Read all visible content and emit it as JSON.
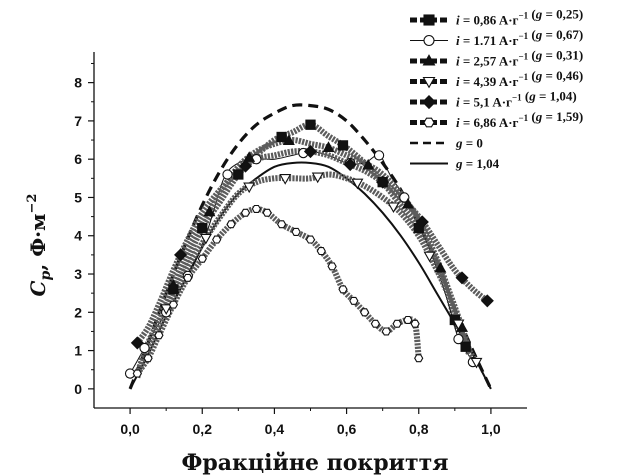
{
  "chart_data": {
    "type": "line",
    "xlabel": "Фракційне покриття",
    "ylabel": {
      "main": "C",
      "sub": "p",
      "rest": ",  Ф·м",
      "sup": "−2"
    },
    "xlim": [
      -0.1,
      1.1
    ],
    "ylim": [
      -0.5,
      8.8
    ],
    "x_ticks": [
      0.0,
      0.2,
      0.4,
      0.6,
      0.8,
      1.0
    ],
    "x_tick_labels": [
      "0,0",
      "0,2",
      "0,4",
      "0,6",
      "0,8",
      "1,0"
    ],
    "y_ticks": [
      0,
      1,
      2,
      3,
      4,
      5,
      6,
      7,
      8
    ],
    "y_tick_labels": [
      "0",
      "1",
      "2",
      "3",
      "4",
      "5",
      "6",
      "7",
      "8"
    ],
    "grid": false,
    "legend_position": "top-right",
    "series": [
      {
        "name": "i = 0,86 A·г−1 (g = 0,25)",
        "legend": {
          "pre": "i = 0,86 A·г",
          "sup": "−1",
          "post": " (g = 0,25)"
        },
        "line_style": "dashed-thick",
        "marker": "square-filled",
        "color": "#111111",
        "x": [
          0.02,
          0.05,
          0.08,
          0.12,
          0.16,
          0.2,
          0.25,
          0.3,
          0.35,
          0.4,
          0.45,
          0.5,
          0.55,
          0.6,
          0.65,
          0.7,
          0.75,
          0.8,
          0.85,
          0.88,
          0.9,
          0.92,
          0.94
        ],
        "y": [
          0.3,
          1.1,
          1.7,
          2.6,
          3.4,
          4.2,
          4.9,
          5.6,
          6.1,
          6.5,
          6.7,
          6.9,
          6.6,
          6.3,
          5.9,
          5.4,
          4.8,
          4.2,
          3.3,
          2.5,
          1.8,
          1.3,
          0.9
        ],
        "marked_x": [
          0.12,
          0.2,
          0.3,
          0.42,
          0.5,
          0.59,
          0.7,
          0.8,
          0.9,
          0.93
        ]
      },
      {
        "name": "i = 1.71 A·г−1 (g = 0,67)",
        "legend": {
          "pre": "i = 1.71 A·г",
          "sup": "−1",
          "post": " (g = 0,67)"
        },
        "line_style": "solid-thin",
        "marker": "circle-open",
        "color": "#111111",
        "x": [
          0.0,
          0.03,
          0.06,
          0.1,
          0.14,
          0.18,
          0.22,
          0.26,
          0.3,
          0.35,
          0.4,
          0.45,
          0.5,
          0.55,
          0.6,
          0.65,
          0.69,
          0.72,
          0.76,
          0.8,
          0.84,
          0.88,
          0.91,
          0.93,
          0.95
        ],
        "y": [
          0.4,
          0.9,
          1.4,
          2.0,
          2.6,
          3.3,
          4.3,
          5.5,
          5.9,
          6.0,
          6.0,
          6.1,
          6.2,
          6.1,
          5.9,
          5.9,
          6.1,
          5.6,
          5.0,
          4.3,
          3.4,
          2.3,
          1.3,
          1.0,
          0.7
        ],
        "marked_x": [
          0.0,
          0.04,
          0.1,
          0.16,
          0.27,
          0.35,
          0.48,
          0.61,
          0.69,
          0.76,
          0.91,
          0.95
        ]
      },
      {
        "name": "i = 2,57 A·г−1 (g = 0,31)",
        "legend": {
          "pre": "i = 2,57 A·г",
          "sup": "−1",
          "post": " (g = 0,31)"
        },
        "line_style": "dashed-thick",
        "marker": "triangle-up-filled",
        "color": "#111111",
        "x": [
          0.02,
          0.05,
          0.08,
          0.12,
          0.16,
          0.2,
          0.25,
          0.3,
          0.35,
          0.4,
          0.45,
          0.5,
          0.55,
          0.6,
          0.65,
          0.7,
          0.75,
          0.8,
          0.85,
          0.89,
          0.92,
          0.94
        ],
        "y": [
          0.4,
          1.2,
          1.8,
          2.7,
          3.6,
          4.3,
          5.1,
          5.8,
          6.2,
          6.4,
          6.5,
          6.4,
          6.3,
          6.1,
          5.9,
          5.6,
          5.1,
          4.4,
          3.4,
          2.4,
          1.6,
          1.0
        ],
        "marked_x": [
          0.12,
          0.22,
          0.33,
          0.44,
          0.55,
          0.66,
          0.77,
          0.86,
          0.92
        ]
      },
      {
        "name": "i = 4,39 A·г−1 (g = 0,46)",
        "legend": {
          "pre": "i = 4,39 A·г",
          "sup": "−1",
          "post": " (g = 0,46)"
        },
        "line_style": "dashed-thick",
        "marker": "triangle-down-open",
        "color": "#111111",
        "x": [
          0.02,
          0.05,
          0.08,
          0.12,
          0.16,
          0.2,
          0.25,
          0.3,
          0.35,
          0.4,
          0.45,
          0.5,
          0.55,
          0.6,
          0.65,
          0.7,
          0.75,
          0.8,
          0.84,
          0.88,
          0.91,
          0.94,
          0.96
        ],
        "y": [
          0.4,
          1.1,
          1.7,
          2.5,
          3.2,
          3.8,
          4.5,
          5.1,
          5.4,
          5.5,
          5.5,
          5.5,
          5.6,
          5.5,
          5.3,
          5.0,
          4.6,
          4.0,
          3.3,
          2.5,
          1.7,
          1.0,
          0.7
        ],
        "marked_x": [
          0.1,
          0.21,
          0.33,
          0.43,
          0.52,
          0.63,
          0.73,
          0.83,
          0.91,
          0.96
        ]
      },
      {
        "name": "i = 5,1 A·г−1 (g = 1,04)",
        "legend": {
          "pre": "i = 5,1 A·г",
          "sup": "−1",
          "post": " (g = 1,04)"
        },
        "line_style": "dashed-thick",
        "marker": "diamond-filled",
        "color": "#111111",
        "x": [
          0.02,
          0.05,
          0.08,
          0.12,
          0.16,
          0.2,
          0.25,
          0.3,
          0.35,
          0.4,
          0.45,
          0.5,
          0.55,
          0.6,
          0.65,
          0.7,
          0.75,
          0.8,
          0.85,
          0.9,
          0.95,
          0.99
        ],
        "y": [
          1.2,
          1.6,
          2.2,
          3.1,
          3.9,
          4.6,
          5.2,
          5.7,
          6.0,
          6.1,
          6.2,
          6.2,
          6.1,
          5.9,
          5.7,
          5.4,
          5.0,
          4.5,
          3.8,
          3.1,
          2.6,
          2.3
        ],
        "marked_x": [
          0.02,
          0.14,
          0.32,
          0.5,
          0.61,
          0.7,
          0.81,
          0.92,
          0.99
        ]
      },
      {
        "name": "i = 6,86 A·г−1 (g = 1,59)",
        "legend": {
          "pre": "i = 6,86 A·г",
          "sup": "−1",
          "post": " (g = 1,59)"
        },
        "line_style": "dashed-thick",
        "marker": "hexagon-open",
        "color": "#111111",
        "x": [
          0.02,
          0.05,
          0.08,
          0.12,
          0.16,
          0.2,
          0.24,
          0.28,
          0.32,
          0.35,
          0.38,
          0.42,
          0.46,
          0.5,
          0.53,
          0.56,
          0.59,
          0.62,
          0.65,
          0.68,
          0.71,
          0.74,
          0.77,
          0.79,
          0.8
        ],
        "y": [
          0.4,
          0.8,
          1.4,
          2.2,
          2.9,
          3.4,
          3.9,
          4.3,
          4.6,
          4.7,
          4.6,
          4.3,
          4.1,
          3.9,
          3.6,
          3.2,
          2.6,
          2.3,
          2.0,
          1.7,
          1.5,
          1.7,
          1.8,
          1.7,
          0.8
        ],
        "marked_x": [
          0.02,
          0.05,
          0.08,
          0.12,
          0.16,
          0.2,
          0.24,
          0.28,
          0.32,
          0.35,
          0.38,
          0.42,
          0.46,
          0.5,
          0.53,
          0.56,
          0.59,
          0.62,
          0.65,
          0.68,
          0.71,
          0.74,
          0.77,
          0.79,
          0.8
        ]
      },
      {
        "name": "g = 0",
        "legend": {
          "pre": "g = 0",
          "sup": "",
          "post": ""
        },
        "line_style": "dashed-bold",
        "marker": "none",
        "color": "#111111",
        "x": [
          0.0,
          0.05,
          0.1,
          0.15,
          0.2,
          0.25,
          0.3,
          0.35,
          0.4,
          0.45,
          0.5,
          0.55,
          0.6,
          0.65,
          0.7,
          0.75,
          0.8,
          0.85,
          0.9,
          0.95,
          1.0
        ],
        "y": [
          0.0,
          1.2,
          2.5,
          3.7,
          4.8,
          5.7,
          6.4,
          6.9,
          7.2,
          7.4,
          7.4,
          7.3,
          7.0,
          6.5,
          5.9,
          5.2,
          4.3,
          3.3,
          2.1,
          1.0,
          0.0
        ]
      },
      {
        "name": "g = 1,04",
        "legend": {
          "pre": "g = 1,04",
          "sup": "",
          "post": ""
        },
        "line_style": "solid",
        "marker": "none",
        "color": "#111111",
        "x": [
          0.0,
          0.05,
          0.1,
          0.15,
          0.2,
          0.25,
          0.3,
          0.35,
          0.4,
          0.45,
          0.5,
          0.55,
          0.6,
          0.65,
          0.7,
          0.75,
          0.8,
          0.85,
          0.9,
          0.95,
          1.0
        ],
        "y": [
          0.0,
          0.9,
          1.9,
          2.8,
          3.7,
          4.5,
          5.1,
          5.5,
          5.8,
          5.9,
          5.9,
          5.8,
          5.5,
          5.1,
          4.6,
          4.0,
          3.3,
          2.5,
          1.7,
          0.9,
          0.0
        ]
      }
    ]
  }
}
